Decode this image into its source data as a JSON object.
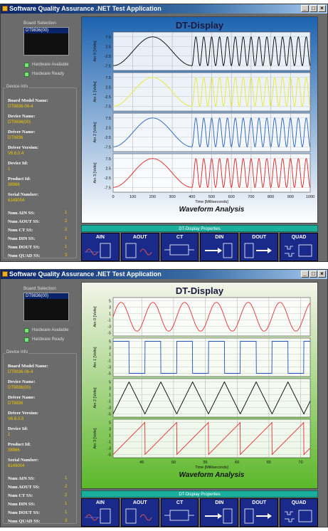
{
  "screens": [
    {
      "title": "Software Quality Assurance .NET Test Application",
      "sidebar": {
        "board_selection_label": "Board Selection",
        "board_selected": "DT9836(00)",
        "hardware_available": "Hardware Available",
        "hardware_ready": "Hardware Ready",
        "device_info_label": "Device Info",
        "fields": [
          {
            "key": "Board Model Name:",
            "value": "DT9836-06-4"
          },
          {
            "key": "Device Name:",
            "value": "DT9836(00)"
          },
          {
            "key": "Driver Name:",
            "value": "DT9836"
          },
          {
            "key": "Driver Version:",
            "value": "V6.6.0.4"
          },
          {
            "key": "Device Id:",
            "value": "1"
          },
          {
            "key": "Product Id:",
            "value": "38966"
          },
          {
            "key": "Serial Number:",
            "value": "6149004"
          }
        ],
        "counts": [
          {
            "key": "Num AIN SS:",
            "value": "1"
          },
          {
            "key": "Num AOUT SS:",
            "value": "2"
          },
          {
            "key": "Num CT SS:",
            "value": "2"
          },
          {
            "key": "Num DIN SS:",
            "value": "1"
          },
          {
            "key": "Num DOUT SS:",
            "value": "1"
          },
          {
            "key": "Num QUAD SS:",
            "value": "3"
          }
        ]
      },
      "display": {
        "title": "DT-Display",
        "subtitle": "Waveform Analysis",
        "xlabel": "Time [Milliseconds]",
        "bg_top": "#1d63b0",
        "bg_bottom": "#ffffff"
      },
      "chart_data": {
        "type": "line",
        "x_ticks": [
          "0",
          "100",
          "200",
          "300",
          "400",
          "500",
          "600",
          "700",
          "800",
          "900",
          "1000"
        ],
        "xlim": [
          0,
          1000
        ],
        "y_ticks": [
          "7.5",
          "2.5",
          "-2.5",
          "-7.5"
        ],
        "ylim": [
          -10,
          10
        ],
        "series": [
          {
            "name": "Ain 0 [Volts]",
            "color": "#000000",
            "amplitude": 7.5,
            "slow_period_ms": 400,
            "fast_period_ms": 40,
            "split_ms": 400
          },
          {
            "name": "Ain 1 [Volts]",
            "color": "#e8e830",
            "amplitude": 7.5,
            "slow_period_ms": 400,
            "fast_period_ms": 40,
            "split_ms": 400
          },
          {
            "name": "Ain 2 [Volts]",
            "color": "#2060c0",
            "amplitude": 7.5,
            "slow_period_ms": 400,
            "fast_period_ms": 40,
            "split_ms": 400
          },
          {
            "name": "Ain 3 [Volts]",
            "color": "#e02020",
            "amplitude": 7.5,
            "slow_period_ms": 400,
            "fast_period_ms": 40,
            "split_ms": 400
          }
        ]
      },
      "props_label": "DT-Display Properties",
      "buttons": [
        "AIN",
        "AOUT",
        "CT",
        "DIN",
        "DOUT",
        "QUAD"
      ]
    },
    {
      "title": "Software Quality Assurance .NET Test Application",
      "sidebar": {
        "board_selection_label": "Board Selection",
        "board_selected": "DT9836(00)",
        "hardware_available": "Hardware Available",
        "hardware_ready": "Hardware Ready",
        "device_info_label": "Device Info",
        "fields": [
          {
            "key": "Board Model Name:",
            "value": "DT9836-06-4"
          },
          {
            "key": "Device Name:",
            "value": "DT9836(00)"
          },
          {
            "key": "Driver Name:",
            "value": "DT9836"
          },
          {
            "key": "Driver Version:",
            "value": "V6.6.0.5"
          },
          {
            "key": "Device Id:",
            "value": "1"
          },
          {
            "key": "Product Id:",
            "value": "38966"
          },
          {
            "key": "Serial Number:",
            "value": "6149004"
          }
        ],
        "counts": [
          {
            "key": "Num AIN SS:",
            "value": "1"
          },
          {
            "key": "Num AOUT SS:",
            "value": "2"
          },
          {
            "key": "Num CT SS:",
            "value": "2"
          },
          {
            "key": "Num DIN SS:",
            "value": "1"
          },
          {
            "key": "Num DOUT SS:",
            "value": "1"
          },
          {
            "key": "Num QUAD SS:",
            "value": "3"
          }
        ]
      },
      "display": {
        "title": "DT-Display",
        "subtitle": "Waveform Analysis",
        "xlabel": "Time [Milliseconds]",
        "bg_top": "#f4f4ea",
        "bg_bottom": "#5cb82a"
      },
      "chart_data": {
        "type": "line",
        "x_ticks": [
          "45",
          "50",
          "55",
          "60",
          "65",
          "70"
        ],
        "xlim": [
          40.5,
          71.5
        ],
        "y_ticks": [
          "5",
          "3",
          "1",
          "-1",
          "-3",
          "-5"
        ],
        "ylim": [
          -6,
          6
        ],
        "series": [
          {
            "name": "Ain 0 [Volts]",
            "color": "#e03030",
            "shape": "sine",
            "amplitude": 4.5,
            "period_ms": 5
          },
          {
            "name": "Ain 1 [Volts]",
            "color": "#2050c0",
            "shape": "square",
            "amplitude": 5,
            "period_ms": 5
          },
          {
            "name": "Ain 2 [Volts]",
            "color": "#000000",
            "shape": "triangle",
            "amplitude": 5,
            "period_ms": 5
          },
          {
            "name": "Ain 3 [Volts]",
            "color": "#e03030",
            "shape": "sawtooth",
            "amplitude": 5,
            "period_ms": 5
          }
        ]
      },
      "props_label": "DT-Display Properties",
      "buttons": [
        "AIN",
        "AOUT",
        "CT",
        "DIN",
        "DOUT",
        "QUAD"
      ]
    }
  ]
}
